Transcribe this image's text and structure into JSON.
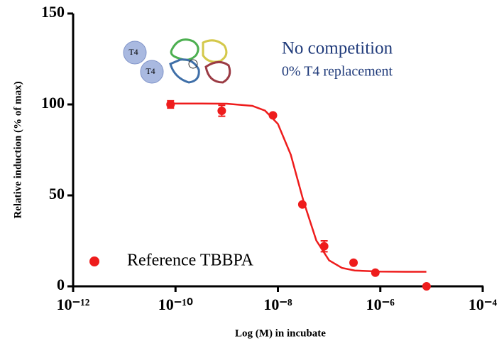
{
  "chart_data": {
    "type": "scatter",
    "xscale": "log",
    "xlabel": "Log (M) in incubate",
    "ylabel": "Relative induction (% of max)",
    "xlim": [
      1e-12,
      0.0001
    ],
    "xticks": [
      {
        "value": 1e-12,
        "label": "10⁻¹²"
      },
      {
        "value": 1e-10,
        "label": "10⁻¹⁰"
      },
      {
        "value": 1e-08,
        "label": "10⁻⁸"
      },
      {
        "value": 1e-06,
        "label": "10⁻⁶"
      },
      {
        "value": 0.0001,
        "label": "10⁻⁴"
      }
    ],
    "ylim": [
      0,
      150
    ],
    "yticks": [
      0,
      50,
      100,
      150
    ],
    "grid": false,
    "legend": "bottom-left",
    "annotations": [
      "No competition",
      "0% T4 replacement"
    ],
    "icon_labels": [
      "T4",
      "T4"
    ],
    "series": [
      {
        "name": "Reference TBBPA",
        "color": "#ee1c1c",
        "x": [
          8e-11,
          8e-10,
          8e-09,
          3e-08,
          8e-08,
          3e-07,
          8e-07,
          8e-06
        ],
        "values": [
          100,
          96.5,
          94,
          45,
          22,
          13,
          7.5,
          0
        ],
        "errors": [
          2,
          3,
          1,
          1,
          3,
          1,
          1,
          0
        ]
      }
    ],
    "fit": {
      "color": "#ee1c1c",
      "x": [
        7.94e-11,
        3.16e-10,
        1e-09,
        3.16e-09,
        5.62e-09,
        1e-08,
        1.78e-08,
        3.16e-08,
        5.62e-08,
        1e-07,
        1.78e-07,
        3.16e-07,
        1e-06,
        3.16e-06,
        7.94e-06
      ],
      "values": [
        100.5,
        100.5,
        100.4,
        99.2,
        96.6,
        89.3,
        72.4,
        46.9,
        25.2,
        14.3,
        10.1,
        8.7,
        8.1,
        8,
        8
      ]
    }
  }
}
